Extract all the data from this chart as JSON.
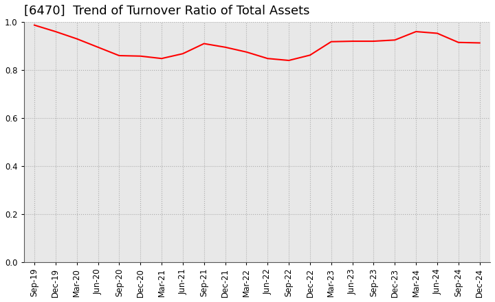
{
  "title": "[6470]  Trend of Turnover Ratio of Total Assets",
  "line_color": "#FF0000",
  "line_width": 1.5,
  "background_color": "#FFFFFF",
  "plot_bg_color": "#E8E8E8",
  "grid_color": "#AAAAAA",
  "ylim": [
    0.0,
    1.0
  ],
  "yticks": [
    0.0,
    0.2,
    0.4,
    0.6,
    0.8,
    1.0
  ],
  "xlabels": [
    "Sep-19",
    "Dec-19",
    "Mar-20",
    "Jun-20",
    "Sep-20",
    "Dec-20",
    "Mar-21",
    "Jun-21",
    "Sep-21",
    "Dec-21",
    "Mar-22",
    "Jun-22",
    "Sep-22",
    "Dec-22",
    "Mar-23",
    "Jun-23",
    "Sep-23",
    "Dec-23",
    "Mar-24",
    "Jun-24",
    "Sep-24",
    "Dec-24"
  ],
  "values": [
    0.987,
    0.96,
    0.93,
    0.895,
    0.86,
    0.858,
    0.848,
    0.868,
    0.91,
    0.895,
    0.875,
    0.848,
    0.84,
    0.862,
    0.918,
    0.92,
    0.92,
    0.925,
    0.96,
    0.953,
    0.915,
    0.913
  ],
  "title_fontsize": 13,
  "tick_fontsize": 8.5,
  "fig_width": 7.2,
  "fig_height": 4.4,
  "dpi": 100
}
